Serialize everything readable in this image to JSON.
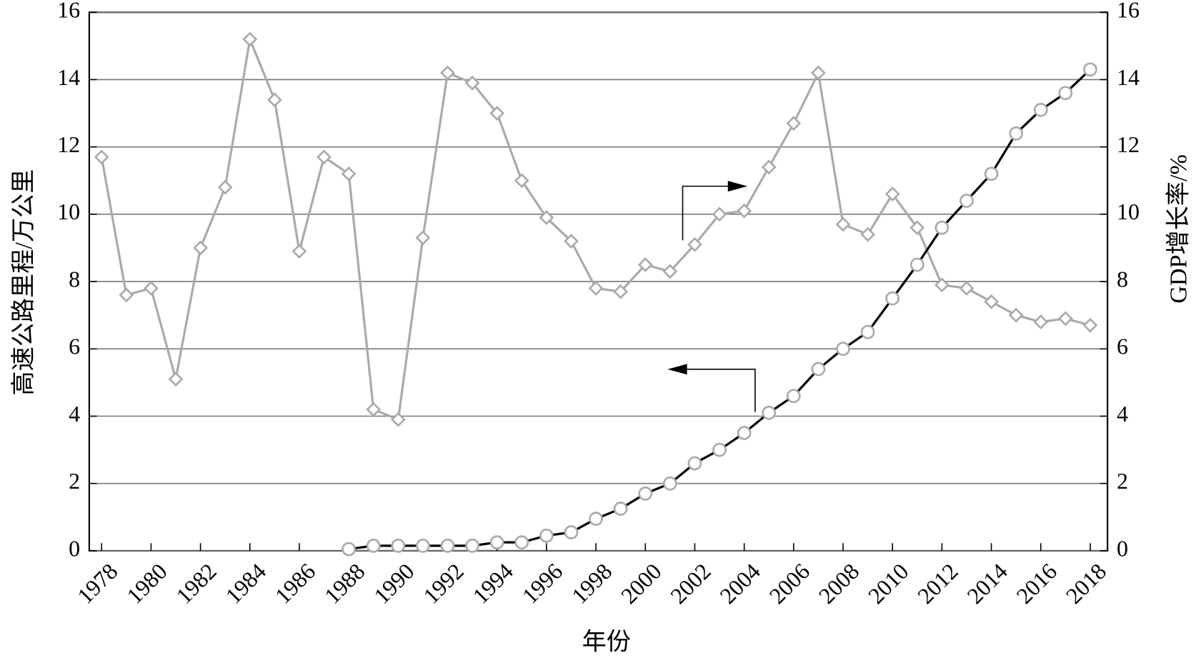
{
  "chart_data": {
    "type": "line",
    "x": [
      1978,
      1979,
      1980,
      1981,
      1982,
      1983,
      1984,
      1985,
      1986,
      1987,
      1988,
      1989,
      1990,
      1991,
      1992,
      1993,
      1994,
      1995,
      1996,
      1997,
      1998,
      1999,
      2000,
      2001,
      2002,
      2003,
      2004,
      2005,
      2006,
      2007,
      2008,
      2009,
      2010,
      2011,
      2012,
      2013,
      2014,
      2015,
      2016,
      2017,
      2018
    ],
    "xlabel": "年份",
    "ylabel": "高速公路里程/万公里",
    "y2label": "GDP增长率/%",
    "xlim": [
      1977.5,
      2018.7
    ],
    "xticks": [
      1978,
      1980,
      1982,
      1984,
      1986,
      1988,
      1990,
      1992,
      1994,
      1996,
      1998,
      2000,
      2002,
      2004,
      2006,
      2008,
      2010,
      2012,
      2014,
      2016,
      2018
    ],
    "ylim": [
      0,
      16
    ],
    "yticks": [
      0,
      2,
      4,
      6,
      8,
      10,
      12,
      14,
      16
    ],
    "y2lim": [
      0,
      16
    ],
    "y2ticks": [
      0,
      2,
      4,
      6,
      8,
      10,
      12,
      14,
      16
    ],
    "grid": true,
    "series": [
      {
        "color": "#aaaaaa",
        "marker": "diamond",
        "axis": "y2",
        "values": [
          11.7,
          7.6,
          7.8,
          5.1,
          9.0,
          10.8,
          15.2,
          13.4,
          8.9,
          11.7,
          11.2,
          4.2,
          3.9,
          9.3,
          14.2,
          13.9,
          13.0,
          11.0,
          9.9,
          9.2,
          7.8,
          7.7,
          8.5,
          8.3,
          9.1,
          10.0,
          10.1,
          11.4,
          12.7,
          14.2,
          9.7,
          9.4,
          10.6,
          9.6,
          7.9,
          7.8,
          7.4,
          7.0,
          6.8,
          6.9,
          6.7
        ]
      },
      {
        "color": "#000000",
        "marker": "circle",
        "values": [
          null,
          null,
          null,
          null,
          null,
          null,
          null,
          null,
          null,
          null,
          0.05,
          0.15,
          0.15,
          0.15,
          0.15,
          0.15,
          0.25,
          0.25,
          0.45,
          0.55,
          0.95,
          1.25,
          1.7,
          2.0,
          2.6,
          3.0,
          3.5,
          4.1,
          4.6,
          5.4,
          6.0,
          6.5,
          7.5,
          8.5,
          9.6,
          10.4,
          11.2,
          12.4,
          13.1,
          13.6,
          14.3
        ]
      }
    ]
  }
}
